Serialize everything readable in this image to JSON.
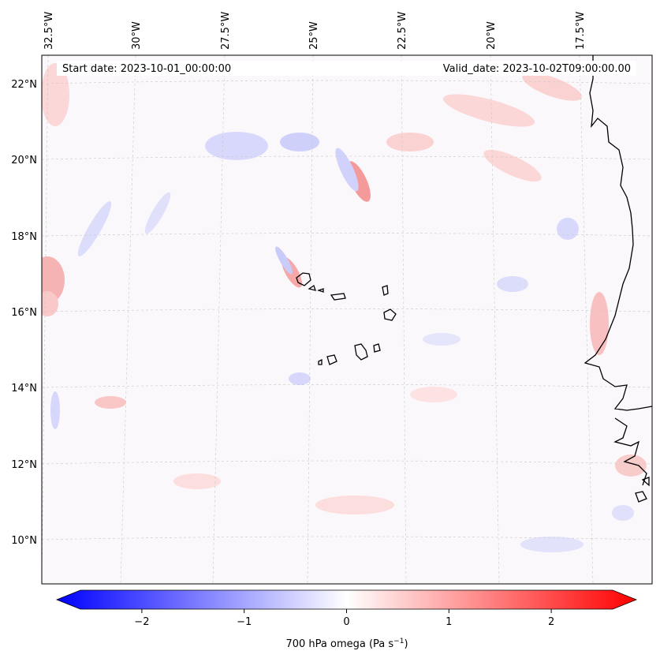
{
  "header": {
    "start_date": "Start date: 2023-10-01_00:00:00",
    "valid_date": "Valid_date: 2023-10-02T09:00:00.00"
  },
  "map": {
    "lon_labels": [
      "32.5°W",
      "30°W",
      "27.5°W",
      "25°W",
      "22.5°W",
      "20°W",
      "17.5°W"
    ],
    "lat_labels": [
      "22°N",
      "20°N",
      "18°N",
      "16°N",
      "14°N",
      "12°N",
      "10°N"
    ],
    "field": "700 hPa omega",
    "colors": {
      "negative": "#0000ff",
      "zero": "#ffffff",
      "positive": "#ff0000",
      "coastline": "#000000",
      "grid": "#b0b0b0"
    }
  },
  "colorbar": {
    "ticks": [
      "−2",
      "−1",
      "0",
      "1",
      "2"
    ],
    "label": "700 hPa omega (Pa s",
    "label_sup": "−1",
    "label_end": ")",
    "range": [
      -2.6,
      2.6
    ]
  }
}
